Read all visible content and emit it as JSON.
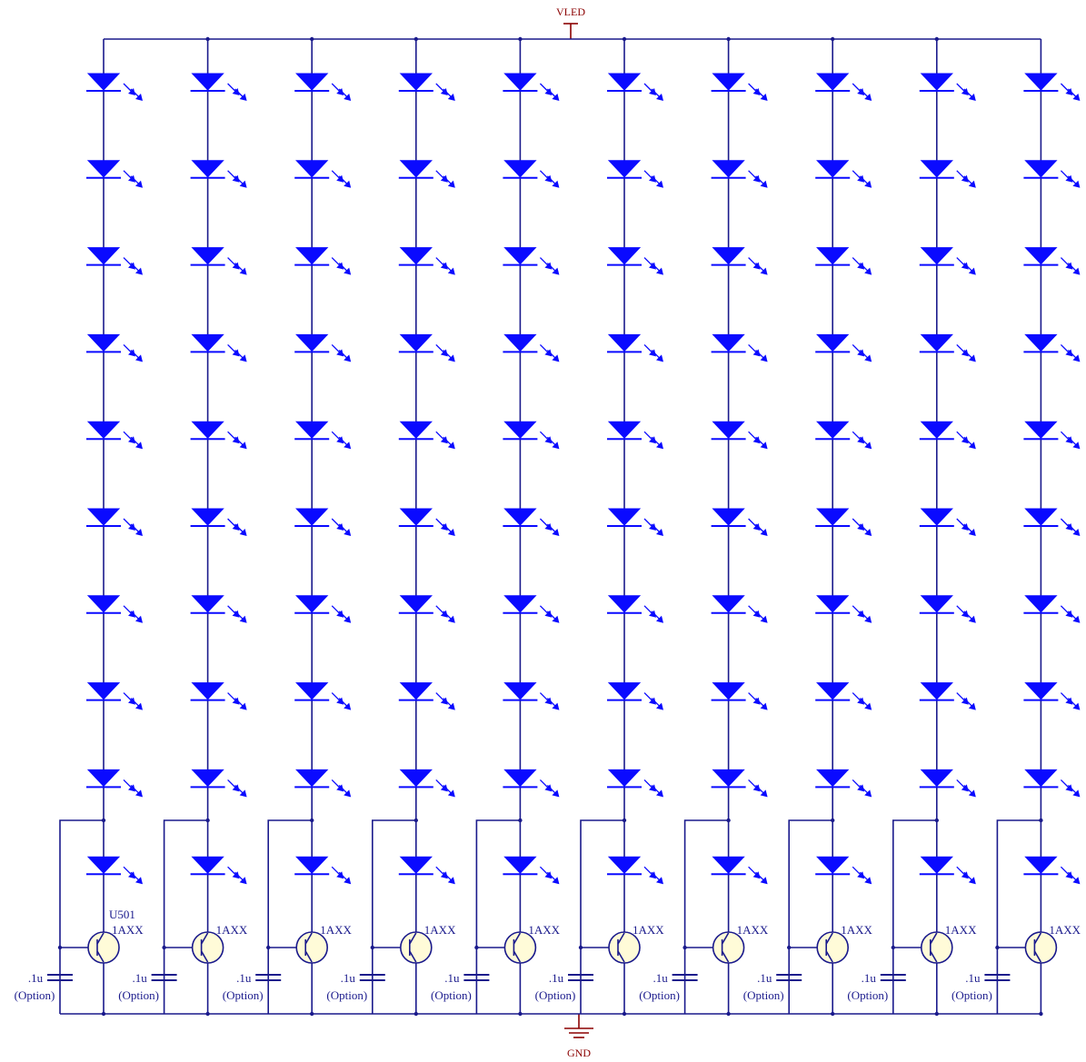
{
  "power_label": "VLED",
  "ground_label": "GND",
  "designator": "U501",
  "columns": [
    {
      "part": "1AXX",
      "cap_value": ".1u",
      "cap_option": "(Option)"
    },
    {
      "part": "1AXX",
      "cap_value": ".1u",
      "cap_option": "(Option)"
    },
    {
      "part": "1AXX",
      "cap_value": ".1u",
      "cap_option": "(Option)"
    },
    {
      "part": "1AXX",
      "cap_value": ".1u",
      "cap_option": "(Option)"
    },
    {
      "part": "1AXX",
      "cap_value": ".1u",
      "cap_option": "(Option)"
    },
    {
      "part": "1AXX",
      "cap_value": ".1u",
      "cap_option": "(Option)"
    },
    {
      "part": "1AXX",
      "cap_value": ".1u",
      "cap_option": "(Option)"
    },
    {
      "part": "1AXX",
      "cap_value": ".1u",
      "cap_option": "(Option)"
    },
    {
      "part": "1AXX",
      "cap_value": ".1u",
      "cap_option": "(Option)"
    },
    {
      "part": "1AXX",
      "cap_value": ".1u",
      "cap_option": "(Option)"
    }
  ],
  "leds_per_string": 10,
  "colors": {
    "led": "#0a0aff",
    "wire": "#1a1a8c",
    "power": "#8b0000",
    "transistor_fill": "#fffbd8"
  }
}
